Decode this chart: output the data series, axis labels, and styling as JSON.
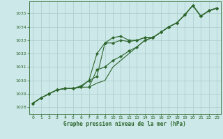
{
  "title": "Graphe pression niveau de la mer (hPa)",
  "bg_color": "#cce8e8",
  "grid_color": "#aacccc",
  "line_color": "#2d662d",
  "xlim": [
    -0.5,
    23.5
  ],
  "ylim": [
    1027.5,
    1035.9
  ],
  "yticks": [
    1028,
    1029,
    1030,
    1031,
    1032,
    1033,
    1034,
    1035
  ],
  "xticks": [
    0,
    1,
    2,
    3,
    4,
    5,
    6,
    7,
    8,
    9,
    10,
    11,
    12,
    13,
    14,
    15,
    16,
    17,
    18,
    19,
    20,
    21,
    22,
    23
  ],
  "series": [
    {
      "x": [
        0,
        1,
        2,
        3,
        4,
        5,
        6,
        7,
        8,
        9,
        10,
        11,
        12,
        13,
        14,
        15,
        16,
        17,
        18,
        19,
        20,
        21,
        22,
        23
      ],
      "y": [
        1028.3,
        1028.7,
        1029.0,
        1029.3,
        1029.4,
        1029.4,
        1029.5,
        1030.0,
        1030.3,
        1032.8,
        1033.2,
        1033.3,
        1033.0,
        1033.0,
        1033.2,
        1033.2,
        1033.6,
        1034.0,
        1034.3,
        1034.9,
        1035.6,
        1034.8,
        1035.2,
        1035.4
      ],
      "marker": true
    },
    {
      "x": [
        0,
        1,
        2,
        3,
        4,
        5,
        6,
        7,
        8,
        9,
        10,
        11,
        12,
        13,
        14,
        15,
        16,
        17,
        18,
        19,
        20,
        21,
        22,
        23
      ],
      "y": [
        1028.3,
        1028.7,
        1029.0,
        1029.3,
        1029.4,
        1029.4,
        1029.5,
        1029.5,
        1029.8,
        1030.0,
        1031.0,
        1031.5,
        1032.0,
        1032.5,
        1033.0,
        1033.2,
        1033.6,
        1034.0,
        1034.3,
        1034.9,
        1035.6,
        1034.8,
        1035.2,
        1035.4
      ],
      "marker": false
    },
    {
      "x": [
        0,
        1,
        2,
        3,
        4,
        5,
        6,
        7,
        8,
        9,
        10,
        11,
        12,
        13,
        14,
        15,
        16,
        17,
        18,
        19,
        20,
        21,
        22,
        23
      ],
      "y": [
        1028.3,
        1028.7,
        1029.0,
        1029.3,
        1029.4,
        1029.4,
        1029.5,
        1029.5,
        1030.8,
        1031.0,
        1031.5,
        1031.8,
        1032.2,
        1032.5,
        1033.0,
        1033.2,
        1033.6,
        1034.0,
        1034.3,
        1034.9,
        1035.6,
        1034.8,
        1035.2,
        1035.4
      ],
      "marker": true
    },
    {
      "x": [
        0,
        1,
        2,
        3,
        4,
        5,
        6,
        7,
        8,
        9,
        10,
        11,
        12,
        13,
        14,
        15,
        16,
        17,
        18,
        19,
        20,
        21,
        22,
        23
      ],
      "y": [
        1028.3,
        1028.7,
        1029.0,
        1029.3,
        1029.4,
        1029.4,
        1029.6,
        1030.0,
        1032.0,
        1032.8,
        1032.8,
        1033.0,
        1032.9,
        1033.0,
        1033.2,
        1033.2,
        1033.6,
        1034.0,
        1034.3,
        1034.9,
        1035.6,
        1034.8,
        1035.2,
        1035.4
      ],
      "marker": true
    }
  ]
}
